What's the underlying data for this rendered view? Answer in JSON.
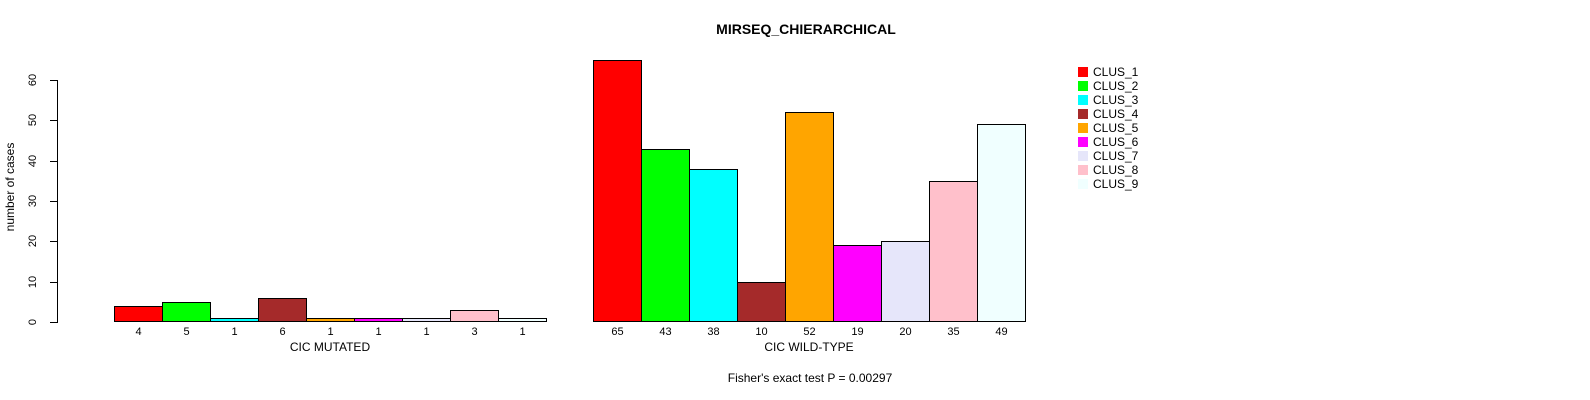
{
  "chart_data": {
    "type": "bar",
    "title": "MIRSEQ_CHIERARCHICAL",
    "ylabel": "number of cases",
    "xlabel": "",
    "footnote": "Fisher's exact test P = 0.00297",
    "ylim": [
      0,
      60
    ],
    "yticks": [
      0,
      10,
      20,
      30,
      40,
      50,
      60
    ],
    "grid": false,
    "legend_position": "right",
    "categories": [
      "CIC MUTATED",
      "CIC WILD-TYPE"
    ],
    "series": [
      {
        "name": "CLUS_1",
        "color": "#FF0000",
        "values": [
          4,
          65
        ]
      },
      {
        "name": "CLUS_2",
        "color": "#00FF00",
        "values": [
          5,
          43
        ]
      },
      {
        "name": "CLUS_3",
        "color": "#00FFFF",
        "values": [
          1,
          38
        ]
      },
      {
        "name": "CLUS_4",
        "color": "#A52A2A",
        "values": [
          6,
          10
        ]
      },
      {
        "name": "CLUS_5",
        "color": "#FFA500",
        "values": [
          1,
          52
        ]
      },
      {
        "name": "CLUS_6",
        "color": "#FF00FF",
        "values": [
          1,
          19
        ]
      },
      {
        "name": "CLUS_7",
        "color": "#E6E6FA",
        "values": [
          1,
          20
        ]
      },
      {
        "name": "CLUS_8",
        "color": "#FFC0CB",
        "values": [
          3,
          35
        ]
      },
      {
        "name": "CLUS_9",
        "color": "#F0FFFF",
        "values": [
          1,
          49
        ]
      }
    ],
    "show_value_labels": true
  }
}
